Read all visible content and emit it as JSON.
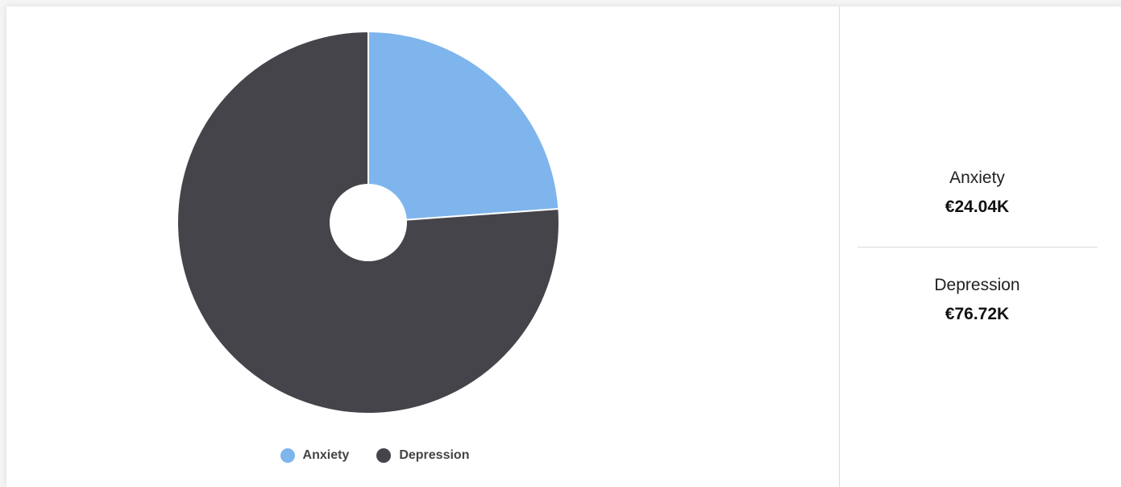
{
  "chart_data": {
    "type": "pie",
    "title": "",
    "categories": [
      "Anxiety",
      "Depression"
    ],
    "values": [
      24.04,
      76.72
    ],
    "colors": [
      "#7eb5ec",
      "#45444b"
    ],
    "hole": true,
    "legend_position": "bottom-center",
    "value_labels": [
      "€24.04K",
      "€76.72K"
    ]
  },
  "legend": {
    "items": [
      {
        "label": "Anxiety",
        "color": "#7eb5ec"
      },
      {
        "label": "Depression",
        "color": "#45444b"
      }
    ]
  },
  "summary": {
    "items": [
      {
        "label": "Anxiety",
        "value": "€24.04K"
      },
      {
        "label": "Depression",
        "value": "€76.72K"
      }
    ]
  }
}
